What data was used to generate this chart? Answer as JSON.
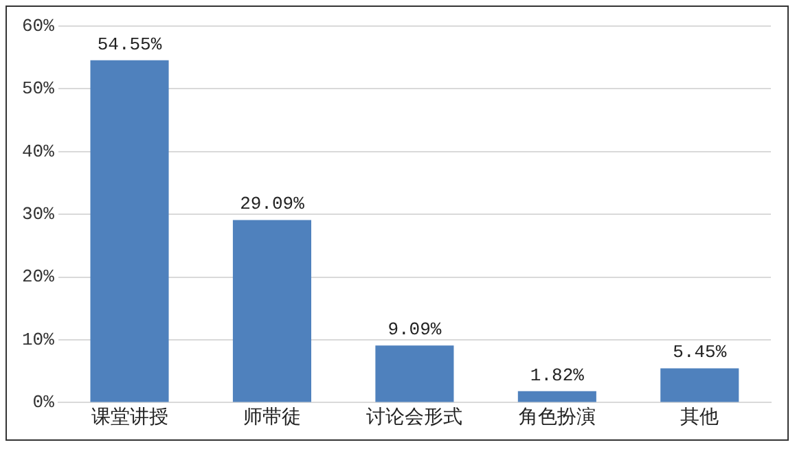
{
  "chart_data": {
    "type": "bar",
    "categories": [
      "课堂讲授",
      "师带徒",
      "讨论会形式",
      "角色扮演",
      "其他"
    ],
    "values": [
      54.55,
      29.09,
      9.09,
      1.82,
      5.45
    ],
    "value_labels": [
      "54.55%",
      "29.09%",
      "9.09%",
      "1.82%",
      "5.45%"
    ],
    "color": "#4f81bd",
    "ylim": [
      0,
      60
    ],
    "yticks": [
      {
        "value": 0,
        "label": "0%"
      },
      {
        "value": 10,
        "label": "10%"
      },
      {
        "value": 20,
        "label": "20%"
      },
      {
        "value": 30,
        "label": "30%"
      },
      {
        "value": 40,
        "label": "40%"
      },
      {
        "value": 50,
        "label": "50%"
      },
      {
        "value": 60,
        "label": "60%"
      }
    ],
    "grid": "y",
    "legend": false
  }
}
